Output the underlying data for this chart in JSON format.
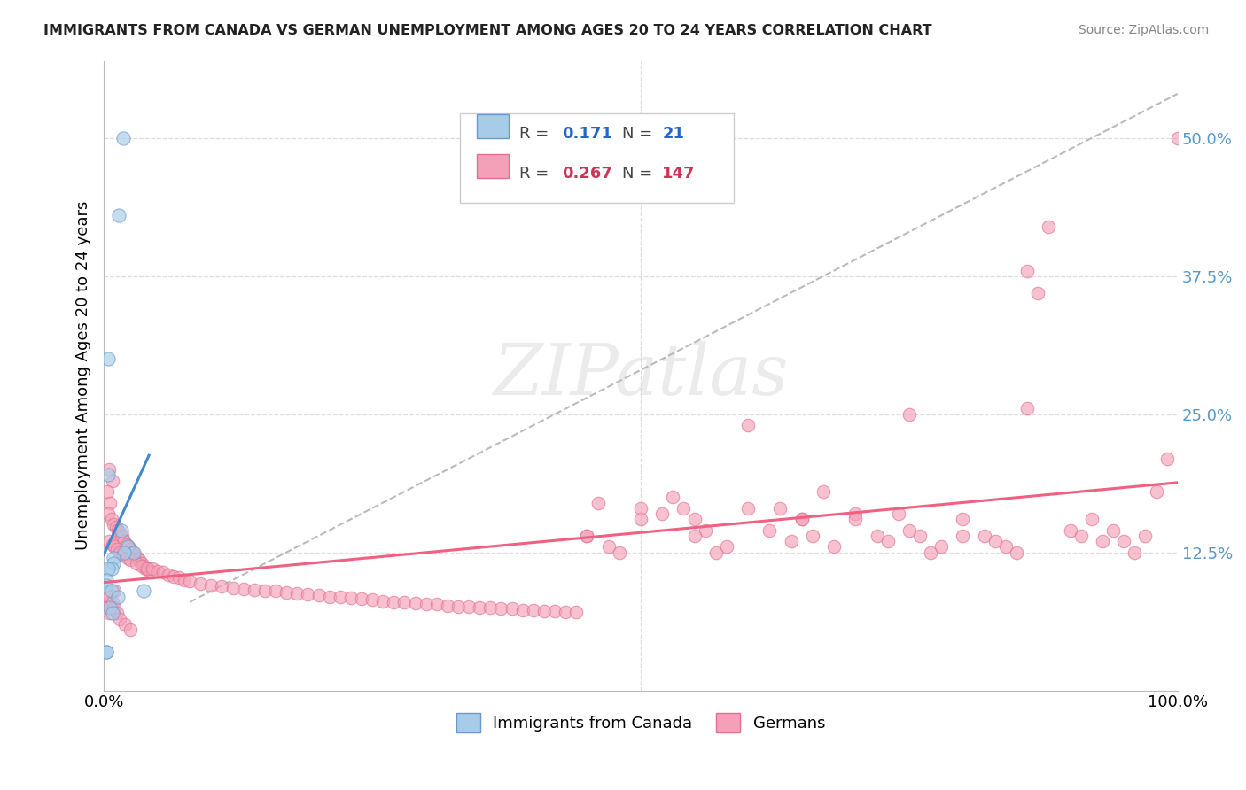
{
  "title": "IMMIGRANTS FROM CANADA VS GERMAN UNEMPLOYMENT AMONG AGES 20 TO 24 YEARS CORRELATION CHART",
  "source": "Source: ZipAtlas.com",
  "ylabel": "Unemployment Among Ages 20 to 24 years",
  "xmin": 0.0,
  "xmax": 1.0,
  "ymin": 0.0,
  "ymax": 0.57,
  "r_canada": 0.171,
  "n_canada": 21,
  "r_german": 0.267,
  "n_german": 147,
  "blue_color": "#a8cce8",
  "blue_edge": "#6699cc",
  "blue_line_color": "#4488cc",
  "pink_color": "#f4a0b8",
  "pink_edge": "#e07090",
  "pink_line_color": "#f06080",
  "gray_dash_color": "#bbbbbb",
  "watermark": "ZIPatlas",
  "background_color": "#ffffff",
  "grid_color": "#dddddd",
  "scatter_blue_x": [
    0.018,
    0.014,
    0.004,
    0.004,
    0.016,
    0.022,
    0.028,
    0.019,
    0.009,
    0.009,
    0.007,
    0.004,
    0.002,
    0.002,
    0.007,
    0.037,
    0.013,
    0.006,
    0.008,
    0.002,
    0.002
  ],
  "scatter_blue_y": [
    0.5,
    0.43,
    0.3,
    0.195,
    0.145,
    0.13,
    0.125,
    0.125,
    0.12,
    0.115,
    0.11,
    0.11,
    0.1,
    0.095,
    0.09,
    0.09,
    0.085,
    0.075,
    0.07,
    0.035,
    0.035
  ],
  "scatter_pink_x": [
    0.005,
    0.008,
    0.003,
    0.006,
    0.004,
    0.007,
    0.009,
    0.011,
    0.013,
    0.015,
    0.017,
    0.019,
    0.021,
    0.023,
    0.025,
    0.027,
    0.029,
    0.031,
    0.033,
    0.035,
    0.037,
    0.039,
    0.041,
    0.043,
    0.045,
    0.005,
    0.01,
    0.005,
    0.003,
    0.005,
    0.008,
    0.01,
    0.012,
    0.015,
    0.02,
    0.025,
    0.005,
    0.008,
    0.01,
    0.012,
    0.015,
    0.018,
    0.022,
    0.025,
    0.03,
    0.035,
    0.04,
    0.045,
    0.05,
    0.055,
    0.06,
    0.065,
    0.07,
    0.075,
    0.08,
    0.09,
    0.1,
    0.11,
    0.12,
    0.13,
    0.14,
    0.15,
    0.16,
    0.17,
    0.18,
    0.19,
    0.2,
    0.21,
    0.22,
    0.23,
    0.24,
    0.25,
    0.26,
    0.27,
    0.28,
    0.29,
    0.3,
    0.31,
    0.32,
    0.33,
    0.34,
    0.35,
    0.36,
    0.37,
    0.38,
    0.39,
    0.4,
    0.41,
    0.42,
    0.43,
    0.44,
    0.45,
    0.5,
    0.52,
    0.53,
    0.55,
    0.6,
    0.62,
    0.64,
    0.65,
    0.67,
    0.7,
    0.72,
    0.74,
    0.75,
    0.77,
    0.8,
    0.82,
    0.84,
    0.85,
    0.86,
    0.87,
    0.88,
    0.9,
    0.92,
    0.94,
    0.96,
    0.98,
    0.99,
    1.0,
    0.46,
    0.47,
    0.48,
    0.54,
    0.56,
    0.57,
    0.58,
    0.63,
    0.66,
    0.68,
    0.73,
    0.76,
    0.78,
    0.83,
    0.91,
    0.93,
    0.95,
    0.97,
    0.86,
    0.6,
    0.75,
    0.5,
    0.55,
    0.65,
    0.7,
    0.8,
    0.45
  ],
  "scatter_pink_y": [
    0.2,
    0.19,
    0.18,
    0.17,
    0.16,
    0.155,
    0.15,
    0.148,
    0.145,
    0.143,
    0.14,
    0.135,
    0.132,
    0.13,
    0.128,
    0.125,
    0.122,
    0.12,
    0.118,
    0.115,
    0.113,
    0.11,
    0.11,
    0.108,
    0.107,
    0.08,
    0.09,
    0.085,
    0.075,
    0.07,
    0.08,
    0.075,
    0.07,
    0.065,
    0.06,
    0.055,
    0.135,
    0.132,
    0.13,
    0.128,
    0.125,
    0.122,
    0.12,
    0.118,
    0.115,
    0.113,
    0.11,
    0.11,
    0.108,
    0.107,
    0.105,
    0.103,
    0.102,
    0.1,
    0.099,
    0.097,
    0.095,
    0.094,
    0.093,
    0.092,
    0.091,
    0.09,
    0.09,
    0.089,
    0.088,
    0.087,
    0.086,
    0.085,
    0.085,
    0.084,
    0.083,
    0.082,
    0.081,
    0.08,
    0.08,
    0.079,
    0.078,
    0.078,
    0.077,
    0.076,
    0.076,
    0.075,
    0.075,
    0.074,
    0.074,
    0.073,
    0.073,
    0.072,
    0.072,
    0.071,
    0.071,
    0.14,
    0.155,
    0.16,
    0.175,
    0.155,
    0.165,
    0.145,
    0.135,
    0.155,
    0.18,
    0.16,
    0.14,
    0.16,
    0.145,
    0.125,
    0.155,
    0.14,
    0.13,
    0.125,
    0.255,
    0.36,
    0.42,
    0.145,
    0.155,
    0.145,
    0.125,
    0.18,
    0.21,
    0.5,
    0.17,
    0.13,
    0.125,
    0.165,
    0.145,
    0.125,
    0.13,
    0.165,
    0.14,
    0.13,
    0.135,
    0.14,
    0.13,
    0.135,
    0.14,
    0.135,
    0.135,
    0.14,
    0.38,
    0.24,
    0.25,
    0.165,
    0.14,
    0.155,
    0.155,
    0.14,
    0.14
  ]
}
